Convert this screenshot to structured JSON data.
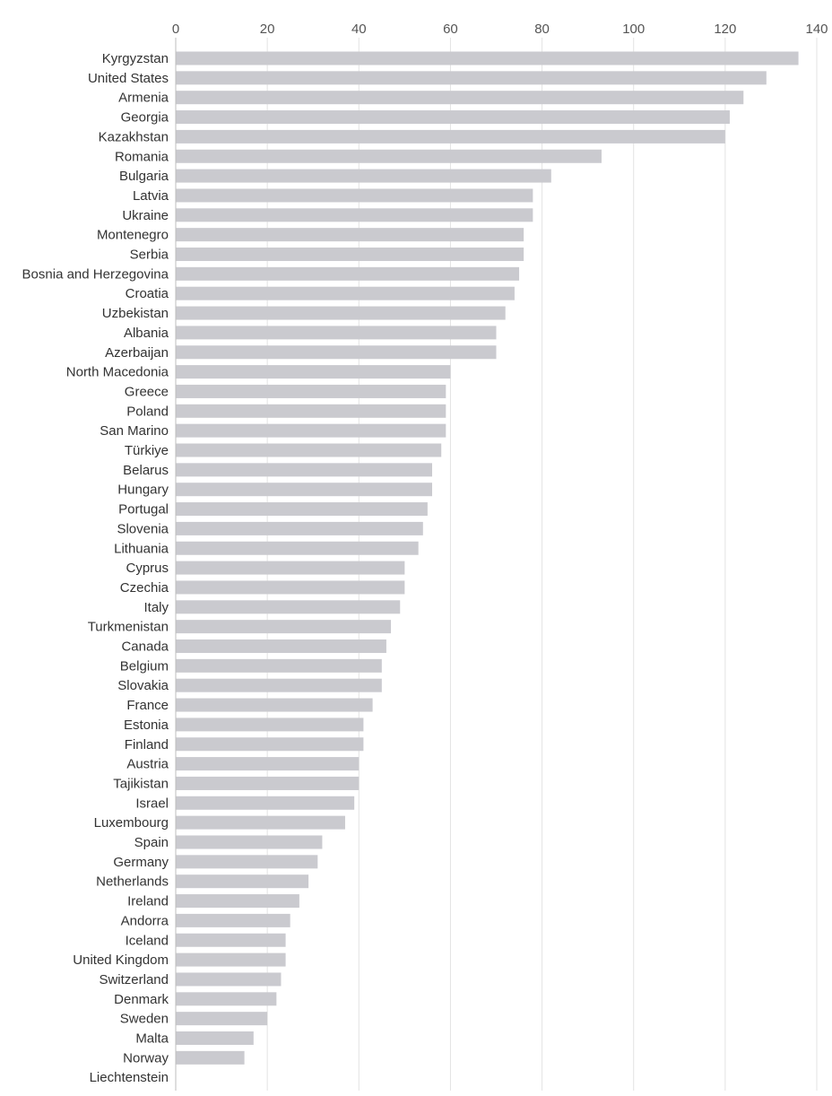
{
  "chart_data": {
    "type": "bar",
    "orientation": "horizontal",
    "title": "",
    "xlabel": "",
    "ylabel": "",
    "xlim": [
      0,
      140
    ],
    "xticks": [
      0,
      20,
      40,
      60,
      80,
      100,
      120,
      140
    ],
    "x_axis_position": "top",
    "grid": true,
    "bar_color": "#cacacf",
    "grid_color": "#e3e3e3",
    "categories": [
      "Kyrgyzstan",
      "United States",
      "Armenia",
      "Georgia",
      "Kazakhstan",
      "Romania",
      "Bulgaria",
      "Latvia",
      "Ukraine",
      "Montenegro",
      "Serbia",
      "Bosnia and Herzegovina",
      "Croatia",
      "Uzbekistan",
      "Albania",
      "Azerbaijan",
      "North Macedonia",
      "Greece",
      "Poland",
      "San Marino",
      "Türkiye",
      "Belarus",
      "Hungary",
      "Portugal",
      "Slovenia",
      "Lithuania",
      "Cyprus",
      "Czechia",
      "Italy",
      "Turkmenistan",
      "Canada",
      "Belgium",
      "Slovakia",
      "France",
      "Estonia",
      "Finland",
      "Austria",
      "Tajikistan",
      "Israel",
      "Luxembourg",
      "Spain",
      "Germany",
      "Netherlands",
      "Ireland",
      "Andorra",
      "Iceland",
      "United Kingdom",
      "Switzerland",
      "Denmark",
      "Sweden",
      "Malta",
      "Norway",
      "Liechtenstein"
    ],
    "values": [
      136,
      129,
      124,
      121,
      120,
      93,
      82,
      78,
      78,
      76,
      76,
      75,
      74,
      72,
      70,
      70,
      60,
      59,
      59,
      59,
      58,
      56,
      56,
      55,
      54,
      53,
      50,
      50,
      49,
      47,
      46,
      45,
      45,
      43,
      41,
      41,
      40,
      40,
      39,
      37,
      32,
      31,
      29,
      27,
      25,
      24,
      24,
      23,
      22,
      20,
      17,
      15,
      0
    ]
  }
}
